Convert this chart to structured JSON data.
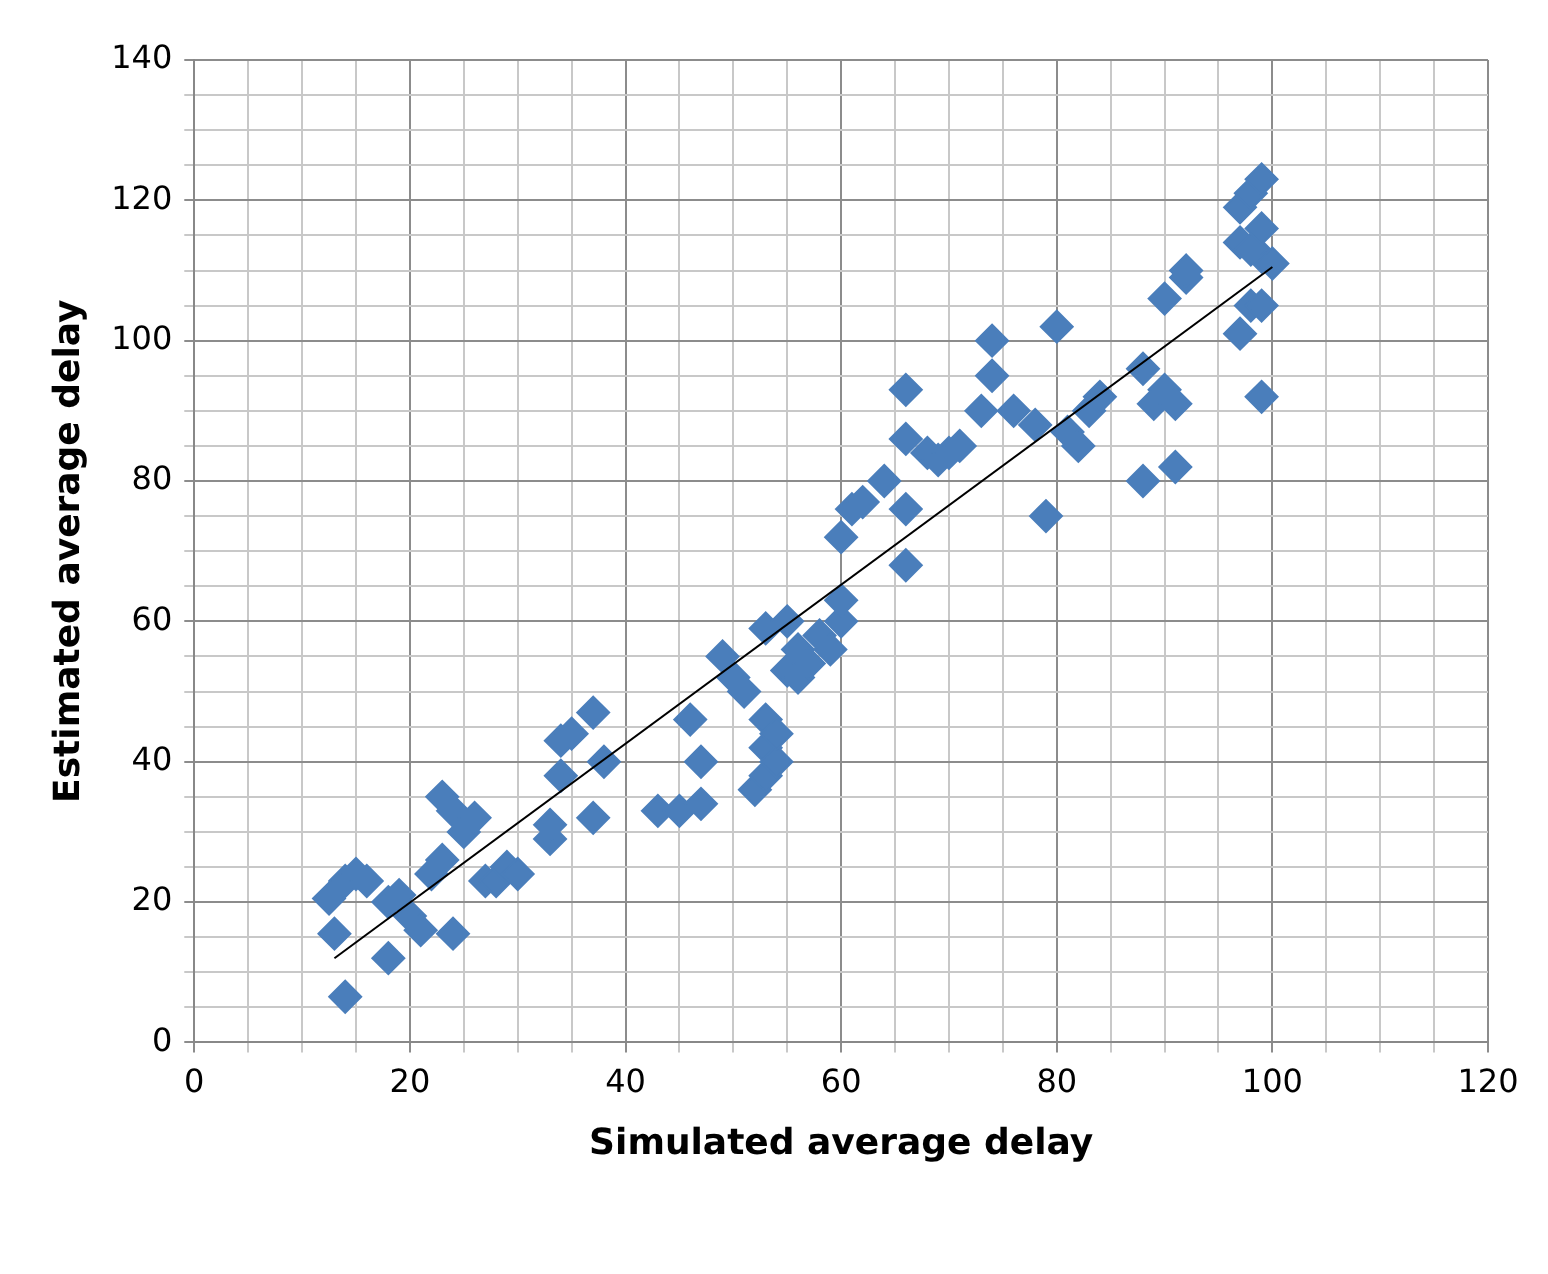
{
  "chart_data": {
    "type": "scatter",
    "xlabel": "Simulated average delay",
    "ylabel": "Estimated average delay",
    "xlim": [
      0,
      120
    ],
    "ylim": [
      0,
      140
    ],
    "xticks": [
      0,
      {
        "value": 5,
        "label": null
      },
      {
        "value": 10,
        "label": null
      },
      {
        "value": 15,
        "label": null
      },
      20,
      {
        "value": 25,
        "label": null
      },
      {
        "value": 30,
        "label": null
      },
      {
        "value": 35,
        "label": null
      },
      40,
      {
        "value": 45,
        "label": null
      },
      {
        "value": 50,
        "label": null
      },
      {
        "value": 55,
        "label": null
      },
      60,
      {
        "value": 65,
        "label": null
      },
      {
        "value": 70,
        "label": null
      },
      {
        "value": 75,
        "label": null
      },
      80,
      {
        "value": 85,
        "label": null
      },
      {
        "value": 90,
        "label": null
      },
      {
        "value": 95,
        "label": null
      },
      100,
      {
        "value": 105,
        "label": null
      },
      {
        "value": 110,
        "label": null
      },
      {
        "value": 115,
        "label": null
      },
      120
    ],
    "yticks": [
      0,
      {
        "value": 5,
        "label": null
      },
      {
        "value": 10,
        "label": null
      },
      {
        "value": 15,
        "label": null
      },
      20,
      {
        "value": 25,
        "label": null
      },
      {
        "value": 30,
        "label": null
      },
      {
        "value": 35,
        "label": null
      },
      40,
      {
        "value": 45,
        "label": null
      },
      {
        "value": 50,
        "label": null
      },
      {
        "value": 55,
        "label": null
      },
      60,
      {
        "value": 65,
        "label": null
      },
      {
        "value": 70,
        "label": null
      },
      {
        "value": 75,
        "label": null
      },
      80,
      {
        "value": 85,
        "label": null
      },
      {
        "value": 90,
        "label": null
      },
      {
        "value": 95,
        "label": null
      },
      100,
      {
        "value": 105,
        "label": null
      },
      {
        "value": 110,
        "label": null
      },
      {
        "value": 115,
        "label": null
      },
      120,
      {
        "value": 125,
        "label": null
      },
      {
        "value": 130,
        "label": null
      },
      {
        "value": 135,
        "label": null
      },
      140
    ],
    "grid": true,
    "legend": false,
    "marker": "diamond",
    "series": [
      {
        "color": "#4a7ebb",
        "x": [
          13,
          12.5,
          14,
          15,
          16,
          14,
          18,
          18,
          19,
          20,
          21,
          22,
          23,
          24,
          23,
          24,
          25,
          26,
          27,
          28,
          29,
          30,
          33,
          33,
          34,
          34,
          35,
          37,
          37,
          38,
          43,
          45,
          47,
          47,
          46,
          49,
          50,
          51,
          52,
          53,
          53,
          53,
          53,
          54,
          54,
          55,
          55,
          56,
          56,
          57,
          58,
          59,
          60,
          60,
          60,
          61,
          62,
          64,
          66,
          66,
          66,
          66,
          68,
          69,
          70,
          71,
          73,
          74,
          74,
          76,
          78,
          79,
          80,
          81,
          82,
          83,
          84,
          88,
          88,
          89,
          90,
          90,
          91,
          91,
          92,
          92,
          97,
          97,
          97,
          98,
          98,
          99,
          99,
          99,
          99,
          100,
          99,
          98
        ],
        "values": [
          15.5,
          20.5,
          23,
          24,
          23,
          6.5,
          12,
          20,
          21,
          18,
          16,
          24,
          26,
          15.5,
          35,
          33,
          30,
          32,
          23,
          23,
          25,
          24,
          29,
          31,
          38,
          43,
          44,
          47,
          32,
          40,
          33,
          33,
          34,
          40,
          46,
          55,
          52,
          50,
          36,
          38,
          42,
          46,
          59,
          40,
          44,
          53,
          60,
          52,
          56,
          54,
          58,
          56,
          60,
          63,
          72,
          76,
          77,
          80,
          68,
          76,
          86,
          93,
          84,
          83,
          84,
          85,
          90,
          95,
          100,
          90,
          88,
          75,
          102,
          87,
          85,
          90,
          92,
          80,
          96,
          91,
          93,
          106,
          82,
          91,
          109,
          110,
          101,
          114,
          119,
          105,
          121,
          92,
          105,
          112,
          123,
          111,
          116,
          113
        ]
      },
      {
        "type": "line",
        "color": "#000000",
        "marker": "none",
        "x": [
          13,
          100
        ],
        "values": [
          12,
          110.5
        ]
      }
    ]
  }
}
